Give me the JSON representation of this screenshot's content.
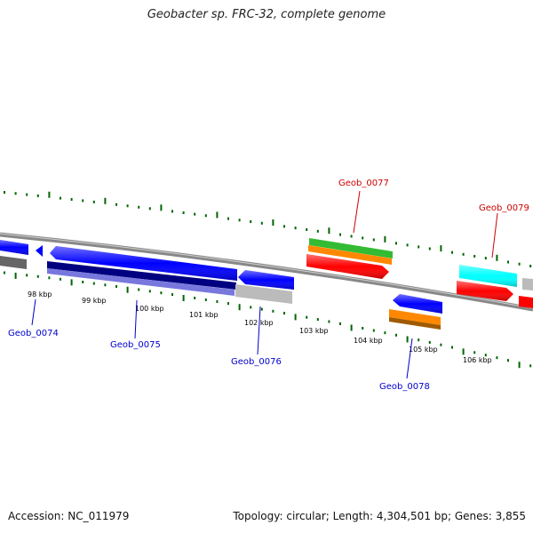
{
  "title": "Geobacter sp. FRC-32, complete genome",
  "footer": {
    "accession": "Accession: NC_011979",
    "summary": "Topology: circular; Length: 4,304,501 bp; Genes: 3,855"
  },
  "scale": {
    "ticks": [
      {
        "label": "98 kbp"
      },
      {
        "label": "99 kbp"
      },
      {
        "label": "100 kbp"
      },
      {
        "label": "101 kbp"
      },
      {
        "label": "102 kbp"
      },
      {
        "label": "103 kbp"
      },
      {
        "label": "104 kbp"
      },
      {
        "label": "105 kbp"
      },
      {
        "label": "106 kbp"
      }
    ]
  },
  "genes": [
    {
      "label": "Geob_0074",
      "strand": "forward",
      "color": "#0000cc"
    },
    {
      "label": "Geob_0075",
      "strand": "reverse",
      "color": "#0000cc"
    },
    {
      "label": "Geob_0076",
      "strand": "reverse",
      "color": "#0000cc"
    },
    {
      "label": "Geob_0077",
      "strand": "forward",
      "color": "#cc0000"
    },
    {
      "label": "Geob_0078",
      "strand": "reverse",
      "color": "#0000cc"
    },
    {
      "label": "Geob_0079",
      "strand": "forward",
      "color": "#cc0000"
    }
  ],
  "feature_colors": {
    "cds": "#0000ff",
    "gene": "#777777",
    "rna_gene": "#bbbbbb",
    "domain_green": "#33bb33",
    "domain_orange": "#ff8800",
    "domain_red": "#ff0000",
    "domain_cyan": "#00ffff",
    "domain_navy": "#000080",
    "domain_purple": "#7777dd",
    "ticks": "#006600",
    "backbone": "#888888"
  }
}
